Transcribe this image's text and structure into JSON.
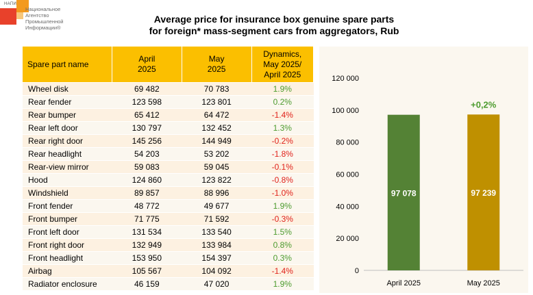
{
  "logo": {
    "abbr": "НАПИ",
    "name": "Национальное\nАгентство\nПромышленной\nИнформации®"
  },
  "title_line1": "Average price for insurance box genuine spare parts",
  "title_line2": "for foreign* mass-segment cars from aggregators, Rub",
  "table": {
    "headers": [
      "Spare part name",
      "April\n2025",
      "May\n2025",
      "Dynamics,\nMay 2025/\nApril 2025"
    ],
    "rows": [
      {
        "name": "Wheel disk",
        "april": "69 482",
        "may": "70 783",
        "dyn": "1.9%"
      },
      {
        "name": "Rear fender",
        "april": "123 598",
        "may": "123 801",
        "dyn": "0.2%"
      },
      {
        "name": "Rear bumper",
        "april": "65 412",
        "may": "64 472",
        "dyn": "-1.4%"
      },
      {
        "name": "Rear left door",
        "april": "130 797",
        "may": "132 452",
        "dyn": "1.3%"
      },
      {
        "name": "Rear right door",
        "april": "145 256",
        "may": "144 949",
        "dyn": "-0.2%"
      },
      {
        "name": "Rear headlight",
        "april": "54 203",
        "may": "53 202",
        "dyn": "-1.8%"
      },
      {
        "name": "Rear-view mirror",
        "april": "59 083",
        "may": "59 045",
        "dyn": "-0.1%"
      },
      {
        "name": "Hood",
        "april": "124 860",
        "may": "123 822",
        "dyn": "-0.8%"
      },
      {
        "name": "Windshield",
        "april": "89 857",
        "may": "88 996",
        "dyn": "-1.0%"
      },
      {
        "name": "Front fender",
        "april": "48 772",
        "may": "49 677",
        "dyn": "1.9%"
      },
      {
        "name": "Front bumper",
        "april": "71 775",
        "may": "71 592",
        "dyn": "-0.3%"
      },
      {
        "name": "Front left door",
        "april": "131 534",
        "may": "133 540",
        "dyn": "1.5%"
      },
      {
        "name": "Front right door",
        "april": "132 949",
        "may": "133 984",
        "dyn": "0.8%"
      },
      {
        "name": "Front headlight",
        "april": "153 950",
        "may": "154 397",
        "dyn": "0.3%"
      },
      {
        "name": "Airbag",
        "april": "105 567",
        "may": "104 092",
        "dyn": "-1.4%"
      },
      {
        "name": "Radiator enclosure",
        "april": "46 159",
        "may": "47 020",
        "dyn": "1.9%"
      }
    ]
  },
  "colors": {
    "header": "#fbbf00",
    "positive": "#4c9b2e",
    "negative": "#e0221b",
    "bar_april": "#548235",
    "bar_may": "#bf9000"
  },
  "chart_data": {
    "type": "bar",
    "categories": [
      "April 2025",
      "May 2025"
    ],
    "values": [
      97078,
      97239
    ],
    "value_labels": [
      "97 078",
      "97 239"
    ],
    "ylim": [
      0,
      120000
    ],
    "yticks": [
      0,
      20000,
      40000,
      60000,
      80000,
      100000,
      120000
    ],
    "ytick_labels": [
      "0",
      "20 000",
      "40 000",
      "60 000",
      "80 000",
      "100 000",
      "120 000"
    ],
    "annotation": "+0,2%",
    "grid": false,
    "legend": "none"
  }
}
